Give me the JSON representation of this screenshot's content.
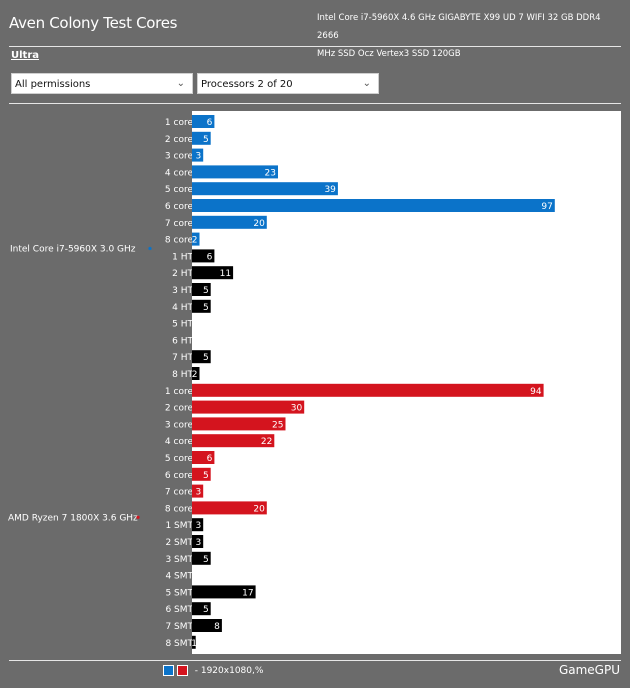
{
  "header": {
    "title": "Aven Colony Test Cores",
    "system_line1": "Intel Core i7-5960X 4.6 GHz GIGABYTE X99 UD 7 WIFI 32 GB DDR4 2666",
    "system_line2": "MHz SSD Ocz Vertex3 SSD 120GB"
  },
  "preset": "Ultra",
  "filters": {
    "permissions": "All permissions",
    "processors": "Processors 2 of 20"
  },
  "footer": {
    "legend_text": "- 1920x1080,%",
    "brand": "GameGPU"
  },
  "colors": {
    "intel": "#0b73c9",
    "amd": "#d4141e",
    "ht_smt": "#000000",
    "background": "#6b6b6b",
    "plot": "#ffffff"
  },
  "chart_data": {
    "type": "bar",
    "orientation": "horizontal",
    "value_max": 100,
    "groups": [
      {
        "name": "Intel Core i7-5960X 3.0 GHz",
        "color": "#0b73c9",
        "bars": [
          {
            "label": "1 core",
            "value": 6,
            "kind": "core"
          },
          {
            "label": "2 core",
            "value": 5,
            "kind": "core"
          },
          {
            "label": "3 core",
            "value": 3,
            "kind": "core"
          },
          {
            "label": "4 core",
            "value": 23,
            "kind": "core"
          },
          {
            "label": "5 core",
            "value": 39,
            "kind": "core"
          },
          {
            "label": "6 core",
            "value": 97,
            "kind": "core"
          },
          {
            "label": "7 core",
            "value": 20,
            "kind": "core"
          },
          {
            "label": "8 core",
            "value": 2,
            "kind": "core"
          },
          {
            "label": "1 HT",
            "value": 6,
            "kind": "ht"
          },
          {
            "label": "2 HT",
            "value": 11,
            "kind": "ht"
          },
          {
            "label": "3 HT",
            "value": 5,
            "kind": "ht"
          },
          {
            "label": "4 HT",
            "value": 5,
            "kind": "ht"
          },
          {
            "label": "5 HT",
            "value": 0,
            "kind": "ht"
          },
          {
            "label": "6 HT",
            "value": 0,
            "kind": "ht"
          },
          {
            "label": "7 HT",
            "value": 5,
            "kind": "ht"
          },
          {
            "label": "8 HT",
            "value": 2,
            "kind": "ht"
          }
        ]
      },
      {
        "name": "AMD Ryzen 7 1800X 3.6 GHz",
        "color": "#d4141e",
        "bars": [
          {
            "label": "1 core",
            "value": 94,
            "kind": "core"
          },
          {
            "label": "2 core",
            "value": 30,
            "kind": "core"
          },
          {
            "label": "3 core",
            "value": 25,
            "kind": "core"
          },
          {
            "label": "4 core",
            "value": 22,
            "kind": "core"
          },
          {
            "label": "5 core",
            "value": 6,
            "kind": "core"
          },
          {
            "label": "6 core",
            "value": 5,
            "kind": "core"
          },
          {
            "label": "7 core",
            "value": 3,
            "kind": "core"
          },
          {
            "label": "8 core",
            "value": 20,
            "kind": "core"
          },
          {
            "label": "1 SMT",
            "value": 3,
            "kind": "ht"
          },
          {
            "label": "2 SMT",
            "value": 3,
            "kind": "ht"
          },
          {
            "label": "3 SMT",
            "value": 5,
            "kind": "ht"
          },
          {
            "label": "4 SMT",
            "value": 0,
            "kind": "ht"
          },
          {
            "label": "5 SMT",
            "value": 17,
            "kind": "ht"
          },
          {
            "label": "6 SMT",
            "value": 5,
            "kind": "ht"
          },
          {
            "label": "7 SMT",
            "value": 8,
            "kind": "ht"
          },
          {
            "label": "8 SMT",
            "value": 1,
            "kind": "ht"
          }
        ]
      }
    ]
  }
}
